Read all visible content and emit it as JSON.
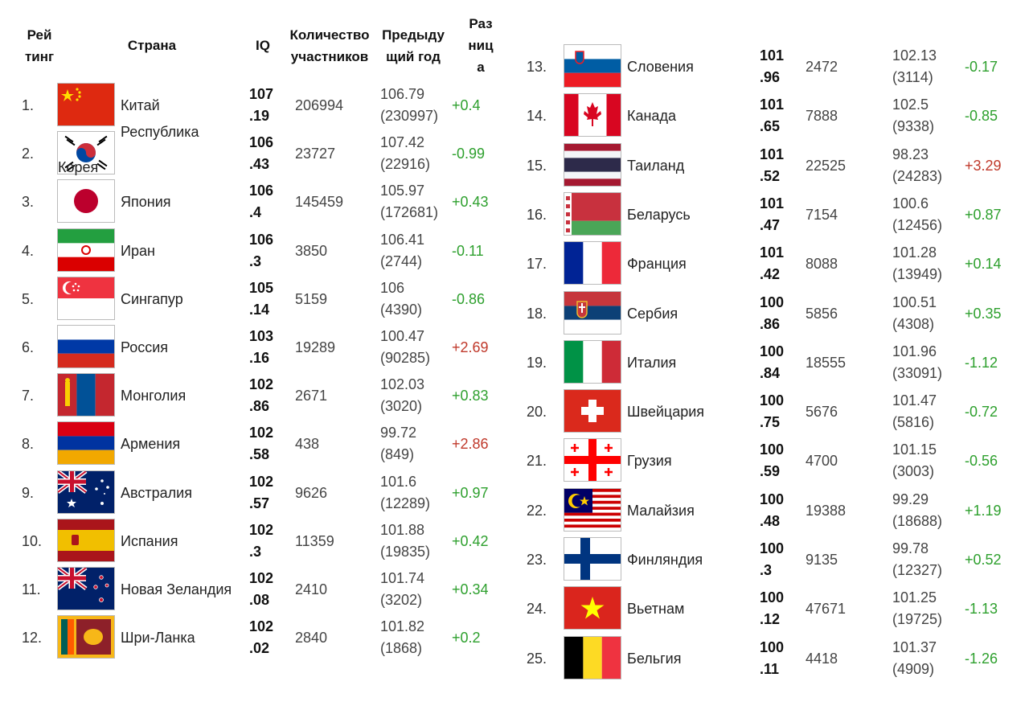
{
  "headers": {
    "rank": "Рей\nтинг",
    "country": "Страна",
    "iq": "IQ",
    "count": "Количество\nучастников",
    "prev": "Предыду\nщий год",
    "diff": "Раз\nниц\nа"
  },
  "left_rows": [
    {
      "rank": "1.",
      "flag": "china-flag",
      "country": "Китай",
      "iq": "107\n.19",
      "count": "206994",
      "prev": "106.79\n(230997)",
      "diff": "+0.4",
      "diff_sign": "pos"
    },
    {
      "rank": "2.",
      "flag": "south-korea-flag",
      "country": "Республика\n\nКорея",
      "iq": "106\n.43",
      "count": "23727",
      "prev": "107.42\n(22916)",
      "diff": "-0.99",
      "diff_sign": "pos"
    },
    {
      "rank": "3.",
      "flag": "japan-flag",
      "country": "Япония",
      "iq": "106\n.4",
      "count": "145459",
      "prev": "105.97\n(172681)",
      "diff": "+0.43",
      "diff_sign": "pos"
    },
    {
      "rank": "4.",
      "flag": "iran-flag",
      "country": "Иран",
      "iq": "106\n.3",
      "count": "3850",
      "prev": "106.41\n(2744)",
      "diff": "-0.11",
      "diff_sign": "pos"
    },
    {
      "rank": "5.",
      "flag": "singapore-flag",
      "country": "Сингапур",
      "iq": "105\n.14",
      "count": "5159",
      "prev": "106\n(4390)",
      "diff": "-0.86",
      "diff_sign": "pos"
    },
    {
      "rank": "6.",
      "flag": "russia-flag",
      "country": "Россия",
      "iq": "103\n.16",
      "count": "19289",
      "prev": "100.47\n(90285)",
      "diff": "+2.69",
      "diff_sign": "neg"
    },
    {
      "rank": "7.",
      "flag": "mongolia-flag",
      "country": "Монголия",
      "iq": "102\n.86",
      "count": "2671",
      "prev": "102.03\n(3020)",
      "diff": "+0.83",
      "diff_sign": "pos"
    },
    {
      "rank": "8.",
      "flag": "armenia-flag",
      "country": "Армения",
      "iq": "102\n.58",
      "count": "438",
      "prev": "99.72\n(849)",
      "diff": "+2.86",
      "diff_sign": "neg"
    },
    {
      "rank": "9.",
      "flag": "australia-flag",
      "country": "Австралия",
      "iq": "102\n.57",
      "count": "9626",
      "prev": "101.6\n(12289)",
      "diff": "+0.97",
      "diff_sign": "pos"
    },
    {
      "rank": "10.",
      "flag": "spain-flag",
      "country": "Испания",
      "iq": "102\n.3",
      "count": "11359",
      "prev": "101.88\n(19835)",
      "diff": "+0.42",
      "diff_sign": "pos"
    },
    {
      "rank": "11.",
      "flag": "new-zealand-flag",
      "country": "Новая Зеландия",
      "iq": "102\n.08",
      "count": "2410",
      "prev": "101.74\n(3202)",
      "diff": "+0.34",
      "diff_sign": "pos"
    },
    {
      "rank": "12.",
      "flag": "sri-lanka-flag",
      "country": "Шри-Ланка",
      "iq": "102\n.02",
      "count": "2840",
      "prev": "101.82\n(1868)",
      "diff": "+0.2",
      "diff_sign": "pos"
    }
  ],
  "right_rows": [
    {
      "rank": "13.",
      "flag": "slovenia-flag",
      "country": "Словения",
      "iq": "101\n.96",
      "count": "2472",
      "prev": "102.13\n(3114)",
      "diff": "-0.17",
      "diff_sign": "pos"
    },
    {
      "rank": "14.",
      "flag": "canada-flag",
      "country": "Канада",
      "iq": "101\n.65",
      "count": "7888",
      "prev": "102.5\n(9338)",
      "diff": "-0.85",
      "diff_sign": "pos"
    },
    {
      "rank": "15.",
      "flag": "thailand-flag",
      "country": "Таиланд",
      "iq": "101\n.52",
      "count": "22525",
      "prev": "98.23\n(24283)",
      "diff": "+3.29",
      "diff_sign": "neg"
    },
    {
      "rank": "16.",
      "flag": "belarus-flag",
      "country": "Беларусь",
      "iq": "101\n.47",
      "count": "7154",
      "prev": "100.6\n(12456)",
      "diff": "+0.87",
      "diff_sign": "pos"
    },
    {
      "rank": "17.",
      "flag": "france-flag",
      "country": "Франция",
      "iq": "101\n.42",
      "count": "8088",
      "prev": "101.28\n(13949)",
      "diff": "+0.14",
      "diff_sign": "pos"
    },
    {
      "rank": "18.",
      "flag": "serbia-flag",
      "country": "Сербия",
      "iq": "100\n.86",
      "count": "5856",
      "prev": "100.51\n(4308)",
      "diff": "+0.35",
      "diff_sign": "pos"
    },
    {
      "rank": "19.",
      "flag": "italy-flag",
      "country": "Италия",
      "iq": "100\n.84",
      "count": "18555",
      "prev": "101.96\n(33091)",
      "diff": "-1.12",
      "diff_sign": "pos"
    },
    {
      "rank": "20.",
      "flag": "switzerland-flag",
      "country": "Швейцария",
      "iq": "100\n.75",
      "count": "5676",
      "prev": "101.47\n(5816)",
      "diff": "-0.72",
      "diff_sign": "pos"
    },
    {
      "rank": "21.",
      "flag": "georgia-flag",
      "country": "Грузия",
      "iq": "100\n.59",
      "count": "4700",
      "prev": "101.15\n(3003)",
      "diff": "-0.56",
      "diff_sign": "pos"
    },
    {
      "rank": "22.",
      "flag": "malaysia-flag",
      "country": "Малайзия",
      "iq": "100\n.48",
      "count": "19388",
      "prev": "99.29\n(18688)",
      "diff": "+1.19",
      "diff_sign": "pos"
    },
    {
      "rank": "23.",
      "flag": "finland-flag",
      "country": "Финляндия",
      "iq": "100\n.3",
      "count": "9135",
      "prev": "99.78\n(12327)",
      "diff": "+0.52",
      "diff_sign": "pos"
    },
    {
      "rank": "24.",
      "flag": "vietnam-flag",
      "country": "Вьетнам",
      "iq": "100\n.12",
      "count": "47671",
      "prev": "101.25\n(19725)",
      "diff": "-1.13",
      "diff_sign": "pos"
    },
    {
      "rank": "25.",
      "flag": "belgium-flag",
      "country": "Бельгия",
      "iq": "100\n.11",
      "count": "4418",
      "prev": "101.37\n(4909)",
      "diff": "-1.26",
      "diff_sign": "pos"
    }
  ],
  "colors": {
    "positive": "#2ea02e",
    "negative": "#c0392b"
  }
}
